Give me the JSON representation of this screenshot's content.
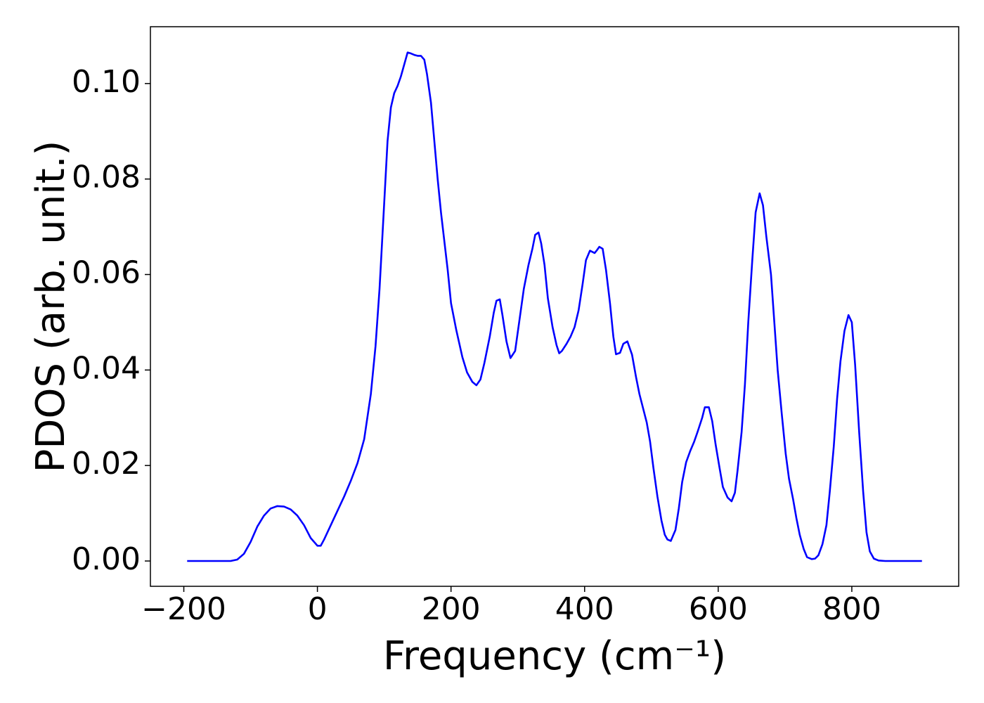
{
  "chart_data": {
    "type": "line",
    "xlabel": "Frequency (cm⁻¹)",
    "ylabel": "PDOS (arb. unit.)",
    "xlim": [
      -250,
      960
    ],
    "ylim": [
      -0.0053,
      0.1119
    ],
    "xticks": [
      {
        "value": -200,
        "label": "−200"
      },
      0,
      200,
      400,
      600,
      800
    ],
    "yticks": [
      {
        "value": 0,
        "label": "0.00"
      },
      {
        "value": 0.02,
        "label": "0.02"
      },
      {
        "value": 0.04,
        "label": "0.04"
      },
      {
        "value": 0.06,
        "label": "0.06"
      },
      {
        "value": 0.08,
        "label": "0.08"
      },
      {
        "value": 0.1,
        "label": "0.10"
      }
    ],
    "grid": false,
    "x": [
      -195,
      -130,
      -120,
      -110,
      -100,
      -90,
      -80,
      -70,
      -60,
      -50,
      -40,
      -30,
      -20,
      -10,
      0,
      5,
      10,
      20,
      30,
      40,
      50,
      60,
      70,
      80,
      87,
      93,
      100,
      105,
      110,
      115,
      120,
      125,
      130,
      135,
      140,
      145,
      150,
      155,
      160,
      164,
      170,
      175,
      180,
      185,
      190,
      195,
      200,
      208,
      217,
      224,
      232,
      238,
      244,
      250,
      258,
      264,
      268,
      273,
      277,
      283,
      289,
      296,
      303,
      309,
      316,
      322,
      326,
      331,
      335,
      340,
      345,
      352,
      358,
      362,
      366,
      373,
      379,
      385,
      391,
      397,
      402,
      408,
      415,
      419,
      422,
      427,
      432,
      438,
      443,
      447,
      453,
      458,
      464,
      471,
      477,
      482,
      493,
      498,
      503,
      509,
      515,
      520,
      524,
      529,
      536,
      541,
      546,
      552,
      558,
      564,
      569,
      576,
      580,
      586,
      591,
      596,
      602,
      607,
      614,
      620,
      625,
      629,
      635,
      640,
      645,
      651,
      656,
      662,
      667,
      672,
      679,
      684,
      689,
      695,
      701,
      706,
      712,
      717,
      722,
      728,
      733,
      740,
      745,
      750,
      756,
      762,
      767,
      773,
      778,
      783,
      789,
      795,
      800,
      805,
      811,
      817,
      822,
      827,
      833,
      840,
      850,
      905
    ],
    "series": [
      {
        "color": "#0000ff",
        "values": [
          0,
          0,
          0.0003,
          0.0015,
          0.004,
          0.0072,
          0.0095,
          0.011,
          0.0115,
          0.0114,
          0.0108,
          0.0095,
          0.0075,
          0.0048,
          0.0032,
          0.0032,
          0.0045,
          0.0075,
          0.0105,
          0.0135,
          0.0168,
          0.0205,
          0.0255,
          0.035,
          0.045,
          0.057,
          0.075,
          0.088,
          0.095,
          0.098,
          0.0995,
          0.1015,
          0.104,
          0.1065,
          0.1063,
          0.106,
          0.1058,
          0.1058,
          0.105,
          0.102,
          0.096,
          0.088,
          0.08,
          0.073,
          0.067,
          0.061,
          0.054,
          0.0483,
          0.0427,
          0.0395,
          0.0375,
          0.0368,
          0.038,
          0.0415,
          0.047,
          0.052,
          0.0545,
          0.0548,
          0.0515,
          0.046,
          0.0425,
          0.044,
          0.051,
          0.057,
          0.062,
          0.0655,
          0.0683,
          0.0688,
          0.0665,
          0.062,
          0.055,
          0.049,
          0.0452,
          0.0435,
          0.044,
          0.0455,
          0.047,
          0.049,
          0.0525,
          0.058,
          0.063,
          0.065,
          0.0645,
          0.0652,
          0.0658,
          0.0654,
          0.061,
          0.054,
          0.047,
          0.0433,
          0.0436,
          0.0455,
          0.046,
          0.0432,
          0.0385,
          0.035,
          0.029,
          0.025,
          0.0195,
          0.0135,
          0.0085,
          0.0055,
          0.0045,
          0.0042,
          0.0065,
          0.011,
          0.0165,
          0.0207,
          0.023,
          0.025,
          0.027,
          0.03,
          0.0322,
          0.0322,
          0.0293,
          0.0245,
          0.0195,
          0.0155,
          0.0133,
          0.0125,
          0.0143,
          0.019,
          0.027,
          0.037,
          0.05,
          0.063,
          0.073,
          0.077,
          0.0745,
          0.068,
          0.06,
          0.05,
          0.04,
          0.031,
          0.0225,
          0.0172,
          0.013,
          0.009,
          0.0055,
          0.0025,
          0.0008,
          0.0004,
          0.0005,
          0.0012,
          0.0035,
          0.0075,
          0.0145,
          0.024,
          0.034,
          0.0418,
          0.0482,
          0.0515,
          0.05,
          0.041,
          0.027,
          0.0145,
          0.006,
          0.002,
          0.0005,
          0.0001,
          0,
          0
        ]
      }
    ]
  }
}
